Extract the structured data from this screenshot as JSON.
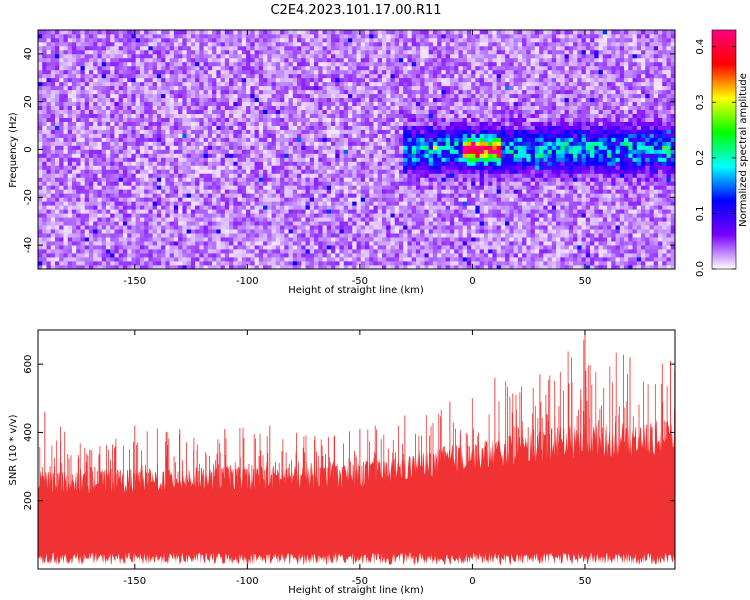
{
  "figure": {
    "title": "C2E4.2023.101.17.00.R11"
  },
  "chart_data": [
    {
      "type": "heatmap",
      "xlabel": "Height of straight line (km)",
      "ylabel": "Frequency (Hz)",
      "xlim": [
        -193,
        90
      ],
      "ylim": [
        -50,
        50
      ],
      "x_ticks": [
        -150,
        -100,
        -50,
        0,
        50
      ],
      "y_ticks": [
        -40,
        -20,
        0,
        20,
        40
      ],
      "grid": false,
      "colorbar": {
        "label": "Normalized spectral amplitude",
        "range": [
          0.0,
          0.43
        ],
        "ticks": [
          0.0,
          0.1,
          0.2,
          0.3,
          0.4
        ],
        "colors": [
          "#ffffff",
          "#7a00ff",
          "#0000ff",
          "#00ffff",
          "#00ff00",
          "#ffff00",
          "#ff0000",
          "#ff0080"
        ]
      },
      "background_level": 0.03,
      "features": [
        {
          "x_range": [
            -30,
            90
          ],
          "frequency": 0,
          "frequency_spread": 8,
          "peak_amplitude": 0.2
        },
        {
          "x_range": [
            -5,
            12
          ],
          "frequency": 0,
          "frequency_spread": 4,
          "peak_amplitude": 0.4
        }
      ]
    },
    {
      "type": "area",
      "xlabel": "Height of straight line (km)",
      "ylabel": "SNR (10 * v/v)",
      "xlim": [
        -193,
        90
      ],
      "ylim": [
        0,
        700
      ],
      "x_ticks": [
        -150,
        -100,
        -50,
        0,
        50
      ],
      "y_ticks": [
        200,
        400,
        600
      ],
      "grid": false,
      "color": "#f03232",
      "series": [
        {
          "x": [
            -190,
            -170,
            -150,
            -130,
            -110,
            -90,
            -70,
            -50,
            -30,
            -10,
            10,
            30,
            50,
            70,
            88
          ],
          "lower": [
            40,
            40,
            40,
            40,
            40,
            40,
            40,
            40,
            40,
            40,
            40,
            40,
            40,
            40,
            40
          ],
          "typical_upper": [
            280,
            275,
            280,
            285,
            290,
            290,
            295,
            300,
            320,
            350,
            370,
            390,
            410,
            410,
            420
          ],
          "peak": [
            460,
            350,
            420,
            410,
            410,
            420,
            390,
            410,
            450,
            490,
            560,
            570,
            700,
            620,
            610
          ]
        }
      ]
    }
  ]
}
